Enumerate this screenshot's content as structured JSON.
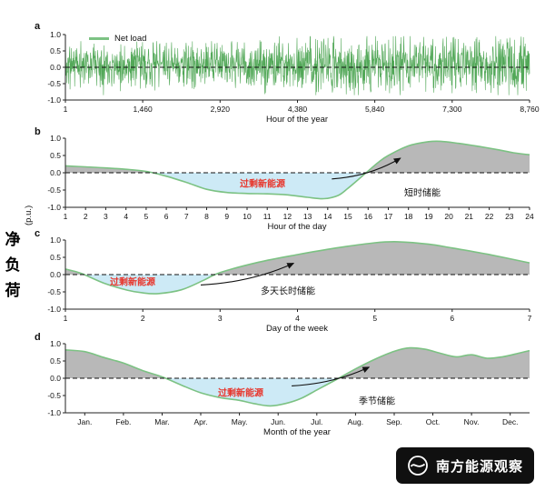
{
  "figure": {
    "ylabel": "净负荷",
    "ylabel_unit": "(p.u.)",
    "watermark_text": "南方能源观察",
    "colors": {
      "curve": "#7cc283",
      "noise": "#3f9f46",
      "fill_positive": "#b8b8b8",
      "fill_negative": "#cdeaf6",
      "surplus_text": "#e8352b",
      "axis": "#222222"
    }
  },
  "chart_data": [
    {
      "letter": "a",
      "type": "line",
      "legend": "Net load",
      "xlabel": "Hour of the year",
      "xlim": [
        1,
        8760
      ],
      "ylim": [
        -1,
        1
      ],
      "grid": false,
      "zero_dashed": true,
      "xticks": [
        {
          "v": 1,
          "t": "1"
        },
        {
          "v": 1460,
          "t": "1,460"
        },
        {
          "v": 2920,
          "t": "2,920"
        },
        {
          "v": 4380,
          "t": "4,380"
        },
        {
          "v": 5840,
          "t": "5,840"
        },
        {
          "v": 7300,
          "t": "7,300"
        },
        {
          "v": 8760,
          "t": "8,760"
        }
      ],
      "yticks": [
        {
          "v": 1,
          "t": "1.0"
        },
        {
          "v": 0.5,
          "t": "0.5"
        },
        {
          "v": 0,
          "t": "0.0"
        },
        {
          "v": -0.5,
          "t": "-0.5"
        },
        {
          "v": -1,
          "t": "-1.0"
        }
      ],
      "noise": {
        "seed": 11,
        "points": 1500,
        "mean": 0.07,
        "envelope": [
          0.42,
          0.38,
          0.43,
          0.4,
          0.39,
          0.46,
          0.52,
          0.56,
          0.5,
          0.47,
          0.52,
          0.56
        ],
        "spike_chance": 0.05,
        "spike_scale": 1.3,
        "clip": [
          -0.85,
          0.95
        ]
      }
    },
    {
      "letter": "b",
      "type": "area",
      "xlabel": "Hour of the day",
      "xlim": [
        1,
        24
      ],
      "ylim": [
        -1,
        1
      ],
      "zero_dashed": true,
      "surplus_label": "过剩新能源",
      "storage_label": "短时储能",
      "arrow": {
        "from": [
          14.2,
          -0.18
        ],
        "to": [
          17.6,
          0.42
        ]
      },
      "curve": [
        [
          1,
          0.2
        ],
        [
          2,
          0.17
        ],
        [
          3,
          0.14
        ],
        [
          4,
          0.1
        ],
        [
          5,
          0.04
        ],
        [
          6,
          -0.1
        ],
        [
          7,
          -0.28
        ],
        [
          8,
          -0.48
        ],
        [
          9,
          -0.57
        ],
        [
          10,
          -0.6
        ],
        [
          11,
          -0.61
        ],
        [
          12,
          -0.64
        ],
        [
          13,
          -0.71
        ],
        [
          13.8,
          -0.75
        ],
        [
          14.5,
          -0.66
        ],
        [
          15,
          -0.45
        ],
        [
          15.8,
          -0.05
        ],
        [
          16.5,
          0.3
        ],
        [
          17,
          0.5
        ],
        [
          18,
          0.78
        ],
        [
          19,
          0.9
        ],
        [
          19.6,
          0.91
        ],
        [
          20.5,
          0.85
        ],
        [
          21.5,
          0.76
        ],
        [
          22.5,
          0.66
        ],
        [
          23.2,
          0.58
        ],
        [
          24,
          0.52
        ]
      ],
      "xticks": [
        {
          "v": 1,
          "t": "1"
        },
        {
          "v": 2,
          "t": "2"
        },
        {
          "v": 3,
          "t": "3"
        },
        {
          "v": 4,
          "t": "4"
        },
        {
          "v": 5,
          "t": "5"
        },
        {
          "v": 6,
          "t": "6"
        },
        {
          "v": 7,
          "t": "7"
        },
        {
          "v": 8,
          "t": "8"
        },
        {
          "v": 9,
          "t": "9"
        },
        {
          "v": 10,
          "t": "10"
        },
        {
          "v": 11,
          "t": "11"
        },
        {
          "v": 12,
          "t": "12"
        },
        {
          "v": 13,
          "t": "13"
        },
        {
          "v": 14,
          "t": "14"
        },
        {
          "v": 15,
          "t": "15"
        },
        {
          "v": 16,
          "t": "16"
        },
        {
          "v": 17,
          "t": "17"
        },
        {
          "v": 18,
          "t": "18"
        },
        {
          "v": 19,
          "t": "19"
        },
        {
          "v": 20,
          "t": "20"
        },
        {
          "v": 21,
          "t": "21"
        },
        {
          "v": 22,
          "t": "22"
        },
        {
          "v": 23,
          "t": "23"
        },
        {
          "v": 24,
          "t": "24"
        }
      ],
      "yticks": [
        {
          "v": 1,
          "t": "1.0"
        },
        {
          "v": 0.5,
          "t": "0.5"
        },
        {
          "v": 0,
          "t": "0.0"
        },
        {
          "v": -0.5,
          "t": "-0.5"
        },
        {
          "v": -1,
          "t": "-1.0"
        }
      ]
    },
    {
      "letter": "c",
      "type": "area",
      "xlabel": "Day of the week",
      "xlim": [
        1,
        7
      ],
      "ylim": [
        -1,
        1
      ],
      "zero_dashed": true,
      "surplus_label": "过剩新能源",
      "storage_label": "多天长时储能",
      "arrow": {
        "from": [
          2.75,
          -0.3
        ],
        "to": [
          3.95,
          0.33
        ]
      },
      "curve": [
        [
          1,
          0.16
        ],
        [
          1.2,
          0.04
        ],
        [
          1.5,
          -0.25
        ],
        [
          1.8,
          -0.45
        ],
        [
          2,
          -0.53
        ],
        [
          2.2,
          -0.55
        ],
        [
          2.5,
          -0.44
        ],
        [
          2.8,
          -0.15
        ],
        [
          3,
          0.06
        ],
        [
          3.5,
          0.36
        ],
        [
          4,
          0.58
        ],
        [
          4.5,
          0.77
        ],
        [
          5,
          0.92
        ],
        [
          5.3,
          0.95
        ],
        [
          5.7,
          0.88
        ],
        [
          6,
          0.77
        ],
        [
          6.5,
          0.57
        ],
        [
          7,
          0.34
        ]
      ],
      "xticks": [
        {
          "v": 1,
          "t": "1"
        },
        {
          "v": 2,
          "t": "2"
        },
        {
          "v": 3,
          "t": "3"
        },
        {
          "v": 4,
          "t": "4"
        },
        {
          "v": 5,
          "t": "5"
        },
        {
          "v": 6,
          "t": "6"
        },
        {
          "v": 7,
          "t": "7"
        }
      ],
      "yticks": [
        {
          "v": 1,
          "t": "1.0"
        },
        {
          "v": 0.5,
          "t": "0.5"
        },
        {
          "v": 0,
          "t": "0.0"
        },
        {
          "v": -0.5,
          "t": "-0.5"
        },
        {
          "v": -1,
          "t": "-1.0"
        }
      ]
    },
    {
      "letter": "d",
      "type": "area",
      "xlabel": "Month of the year",
      "xlim": [
        0.5,
        12.5
      ],
      "ylim": [
        -1,
        1
      ],
      "zero_dashed": true,
      "surplus_label": "过剩新能源",
      "storage_label": "季节储能",
      "arrow": {
        "from": [
          6.35,
          -0.22
        ],
        "to": [
          8.35,
          0.32
        ]
      },
      "curve": [
        [
          0.5,
          0.82
        ],
        [
          1,
          0.77
        ],
        [
          1.5,
          0.6
        ],
        [
          2,
          0.44
        ],
        [
          2.5,
          0.22
        ],
        [
          3,
          0.04
        ],
        [
          3.5,
          -0.2
        ],
        [
          4,
          -0.42
        ],
        [
          4.5,
          -0.56
        ],
        [
          5,
          -0.64
        ],
        [
          5.4,
          -0.74
        ],
        [
          5.8,
          -0.8
        ],
        [
          6.2,
          -0.73
        ],
        [
          6.6,
          -0.58
        ],
        [
          7,
          -0.34
        ],
        [
          7.5,
          -0.04
        ],
        [
          8,
          0.27
        ],
        [
          8.5,
          0.55
        ],
        [
          9,
          0.78
        ],
        [
          9.4,
          0.88
        ],
        [
          9.8,
          0.84
        ],
        [
          10.2,
          0.72
        ],
        [
          10.6,
          0.62
        ],
        [
          11,
          0.68
        ],
        [
          11.4,
          0.58
        ],
        [
          11.8,
          0.62
        ],
        [
          12.2,
          0.72
        ],
        [
          12.5,
          0.8
        ]
      ],
      "xticks": [
        {
          "v": 1,
          "t": "Jan."
        },
        {
          "v": 2,
          "t": "Feb."
        },
        {
          "v": 3,
          "t": "Mar."
        },
        {
          "v": 4,
          "t": "Apr."
        },
        {
          "v": 5,
          "t": "May."
        },
        {
          "v": 6,
          "t": "Jun."
        },
        {
          "v": 7,
          "t": "Jul."
        },
        {
          "v": 8,
          "t": "Aug."
        },
        {
          "v": 9,
          "t": "Sep."
        },
        {
          "v": 10,
          "t": "Oct."
        },
        {
          "v": 11,
          "t": "Nov."
        },
        {
          "v": 12,
          "t": "Dec."
        }
      ],
      "yticks": [
        {
          "v": 1,
          "t": "1.0"
        },
        {
          "v": 0.5,
          "t": "0.5"
        },
        {
          "v": 0,
          "t": "0.0"
        },
        {
          "v": -0.5,
          "t": "-0.5"
        },
        {
          "v": -1,
          "t": "-1.0"
        }
      ]
    }
  ]
}
